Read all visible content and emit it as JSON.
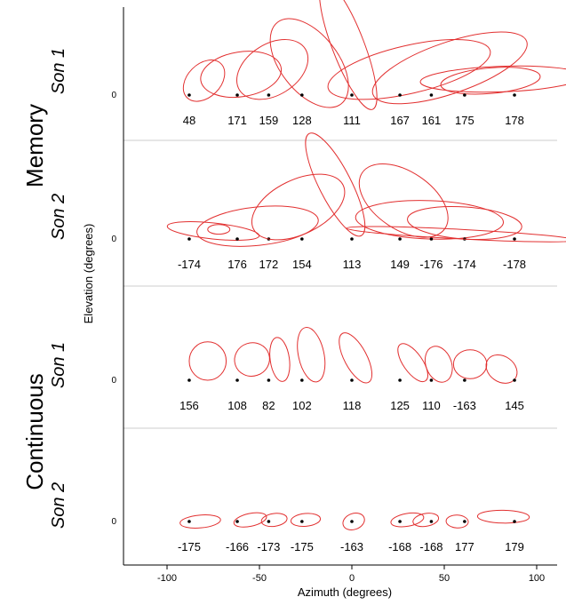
{
  "chart_data": {
    "type": "scatter",
    "xlabel": "Azimuth (degrees)",
    "ylabel": "Elevation (degrees)",
    "xlim": [
      -112,
      108
    ],
    "x_ticks": [
      -100,
      -50,
      0,
      50,
      100
    ],
    "y_tick_label": "0",
    "colors": {
      "ellipse": "#e23030",
      "point": "#000000",
      "axis": "#000000"
    },
    "groups": [
      {
        "label": "Memory",
        "rows": [
          0,
          1
        ]
      },
      {
        "label": "Continuous",
        "rows": [
          2,
          3
        ]
      }
    ],
    "rows": [
      {
        "label": "Son 1",
        "items": [
          {
            "target": -88,
            "angle": "48",
            "cx": -80,
            "cy": 9,
            "rx": 9,
            "ry": 15,
            "rot": 45
          },
          {
            "target": -62,
            "angle": "171",
            "cx": -60,
            "cy": 13,
            "rx": 22,
            "ry": 14,
            "rot": -9
          },
          {
            "target": -45,
            "angle": "159",
            "cx": -43,
            "cy": 16,
            "rx": 21,
            "ry": 16,
            "rot": -32
          },
          {
            "target": -27,
            "angle": "128",
            "cx": -23,
            "cy": 20,
            "rx": 28,
            "ry": 18,
            "rot": 52
          },
          {
            "target": 0,
            "angle": "111",
            "cx": -2,
            "cy": 31,
            "rx": 37,
            "ry": 10,
            "rot": 69
          },
          {
            "target": 26,
            "angle": "167",
            "cx": 31,
            "cy": 16,
            "rx": 45,
            "ry": 15,
            "rot": -13
          },
          {
            "target": 43,
            "angle": "161",
            "cx": 53,
            "cy": 17,
            "rx": 44,
            "ry": 16,
            "rot": -19
          },
          {
            "target": 61,
            "angle": "175",
            "cx": 75,
            "cy": 9,
            "rx": 27,
            "ry": 8,
            "rot": -5
          },
          {
            "target": 88,
            "angle": "178",
            "cx": 81,
            "cy": 10,
            "rx": 44,
            "ry": 8,
            "rot": -2
          }
        ]
      },
      {
        "label": "Son 2",
        "items": [
          {
            "target": -88,
            "angle": "-174",
            "cx": -75,
            "cy": 5,
            "rx": 25,
            "ry": 5,
            "rot": 6
          },
          {
            "target": -62,
            "angle": "176",
            "cx": -72,
            "cy": 6,
            "rx": 6,
            "ry": 3,
            "rot": 0
          },
          {
            "target": -45,
            "angle": "172",
            "cx": -51,
            "cy": 8,
            "rx": 33,
            "ry": 12,
            "rot": -6
          },
          {
            "target": -27,
            "angle": "154",
            "cx": -29,
            "cy": 20,
            "rx": 27,
            "ry": 17,
            "rot": -26
          },
          {
            "target": 0,
            "angle": "113",
            "cx": -9,
            "cy": 34,
            "rx": 31,
            "ry": 10,
            "rot": 63
          },
          {
            "target": 26,
            "angle": "149",
            "cx": 28,
            "cy": 24,
            "rx": 27,
            "ry": 18,
            "rot": 34
          },
          {
            "target": 43,
            "angle": "-176",
            "cx": 42,
            "cy": 12,
            "rx": 40,
            "ry": 12,
            "rot": 2
          },
          {
            "target": 61,
            "angle": "-174",
            "cx": 61,
            "cy": 10,
            "rx": 31,
            "ry": 10,
            "rot": 4
          },
          {
            "target": 88,
            "angle": "-178",
            "cx": 59,
            "cy": 3,
            "rx": 62,
            "ry": 3,
            "rot": 3
          }
        ]
      },
      {
        "label": "Son 1",
        "items": [
          {
            "target": -88,
            "angle": "156",
            "cx": -78,
            "cy": 12,
            "rx": 10,
            "ry": 12,
            "rot": 0
          },
          {
            "target": -62,
            "angle": "108",
            "cx": -54,
            "cy": 13,
            "rx": 9,
            "ry": 11,
            "rot": 72
          },
          {
            "target": -45,
            "angle": "82",
            "cx": -39,
            "cy": 13,
            "rx": 12,
            "ry": 6,
            "rot": 82
          },
          {
            "target": -27,
            "angle": "102",
            "cx": -22,
            "cy": 16,
            "rx": 15,
            "ry": 8,
            "rot": 78
          },
          {
            "target": 0,
            "angle": "118",
            "cx": 2,
            "cy": 14,
            "rx": 15,
            "ry": 7,
            "rot": 62
          },
          {
            "target": 26,
            "angle": "125",
            "cx": 33,
            "cy": 11,
            "rx": 12,
            "ry": 6,
            "rot": 55
          },
          {
            "target": 43,
            "angle": "110",
            "cx": 47,
            "cy": 10,
            "rx": 10,
            "ry": 8,
            "rot": 70
          },
          {
            "target": 61,
            "angle": "-163",
            "cx": 64,
            "cy": 10,
            "rx": 9,
            "ry": 9,
            "rot": 0
          },
          {
            "target": 88,
            "angle": "145",
            "cx": 81,
            "cy": 7,
            "rx": 9,
            "ry": 8,
            "rot": 35
          }
        ]
      },
      {
        "label": "Son 2",
        "items": [
          {
            "target": -88,
            "angle": "-175",
            "cx": -82,
            "cy": 0,
            "rx": 11,
            "ry": 4,
            "rot": -5
          },
          {
            "target": -62,
            "angle": "-166",
            "cx": -55,
            "cy": 1,
            "rx": 9,
            "ry": 4,
            "rot": -12
          },
          {
            "target": -45,
            "angle": "-173",
            "cx": -42,
            "cy": 1,
            "rx": 7,
            "ry": 4,
            "rot": -8
          },
          {
            "target": -27,
            "angle": "-175",
            "cx": -25,
            "cy": 1,
            "rx": 8,
            "ry": 4,
            "rot": -5
          },
          {
            "target": 0,
            "angle": "-163",
            "cx": 1,
            "cy": 0,
            "rx": 6,
            "ry": 5,
            "rot": -20
          },
          {
            "target": 26,
            "angle": "-168",
            "cx": 30,
            "cy": 1,
            "rx": 9,
            "ry": 4,
            "rot": -10
          },
          {
            "target": 43,
            "angle": "-168",
            "cx": 40,
            "cy": 1,
            "rx": 7,
            "ry": 4,
            "rot": -10
          },
          {
            "target": 61,
            "angle": "177",
            "cx": 57,
            "cy": 0,
            "rx": 6,
            "ry": 4,
            "rot": 3
          },
          {
            "target": 88,
            "angle": "179",
            "cx": 82,
            "cy": 3,
            "rx": 14,
            "ry": 4,
            "rot": 1
          }
        ]
      }
    ]
  }
}
